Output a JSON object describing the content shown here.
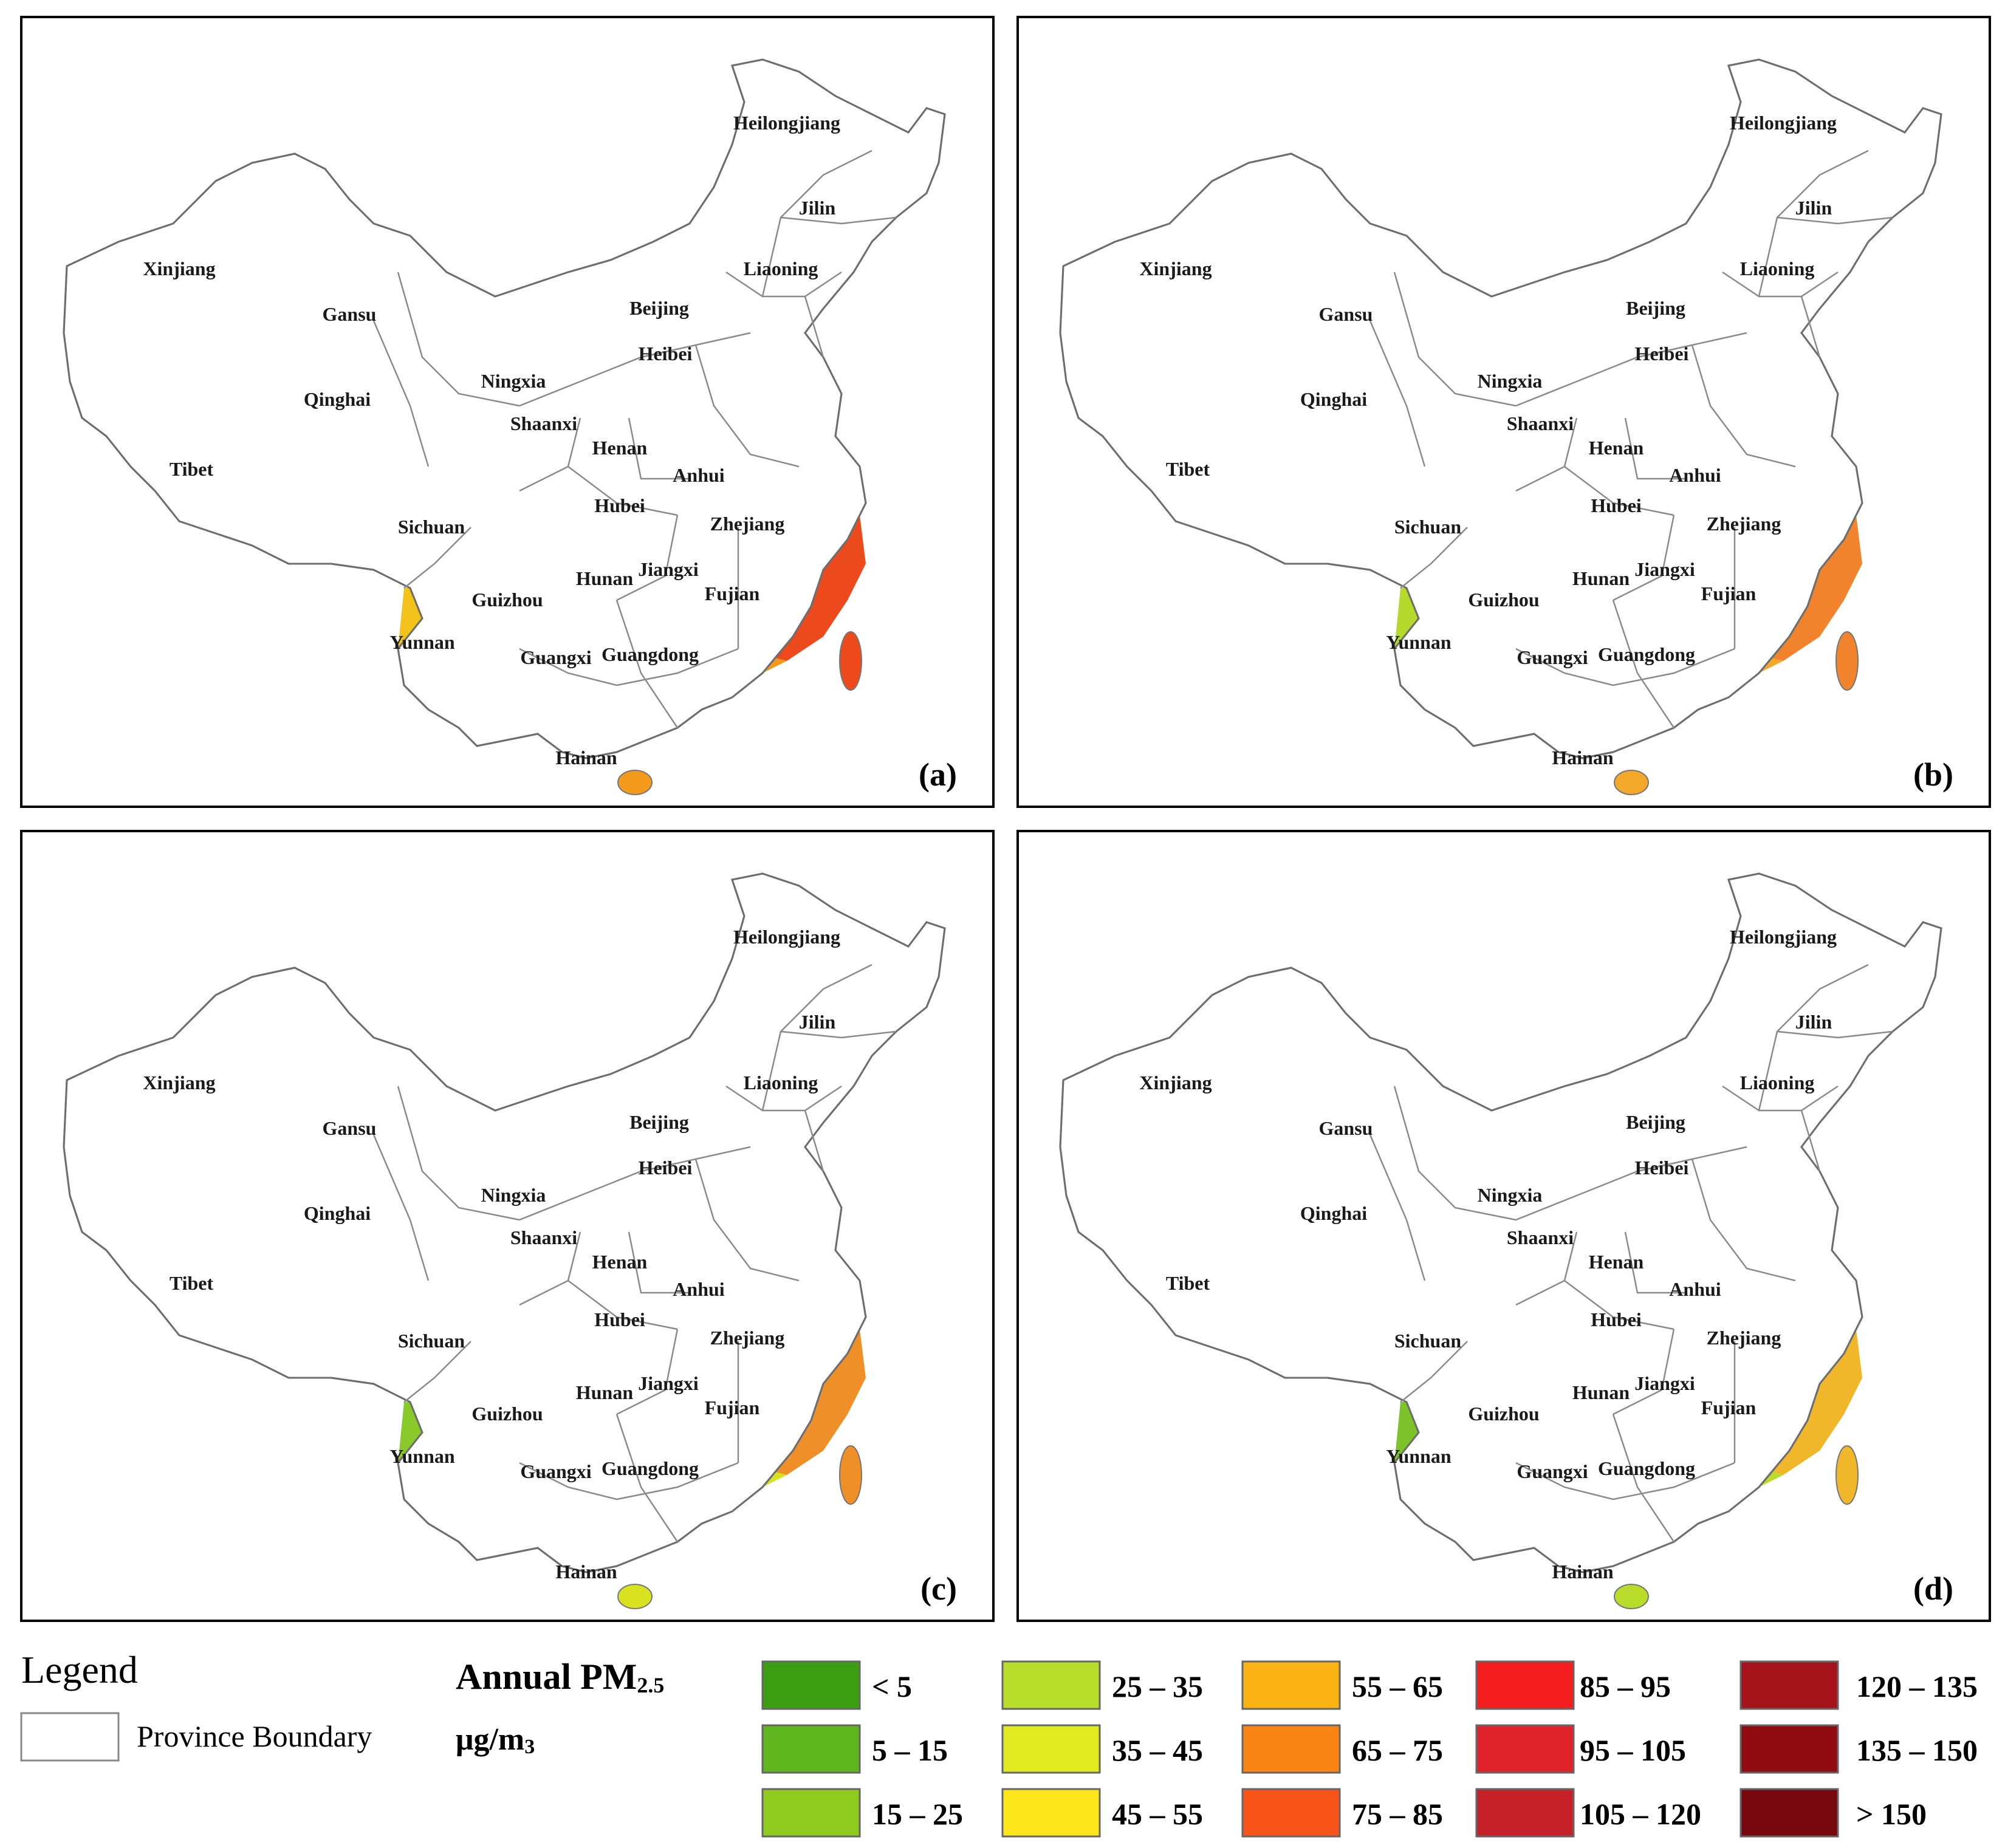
{
  "panels": [
    {
      "tag": "(a)",
      "colors": {
        "north": "#d3e21f",
        "ne": "#d9e51e",
        "west": "#d72a18",
        "west2": "#ef6a1a",
        "central": "#e9401c",
        "east": "#ec4a1c",
        "sw": "#f3c21b",
        "south": "#f39a1d",
        "tibet": "#ffffff",
        "gansu": "#f6d11b",
        "sichuan": "#c8141a"
      }
    },
    {
      "tag": "(b)",
      "colors": {
        "north": "#b9dc2a",
        "ne": "#a9d52d",
        "west": "#f07a1e",
        "west2": "#f4a41c",
        "central": "#ef6f20",
        "east": "#f0832b",
        "sw": "#b5da2b",
        "south": "#f3a82a",
        "tibet": "#ffffff",
        "gansu": "#e6e222",
        "sichuan": "#f3b329"
      }
    },
    {
      "tag": "(c)",
      "colors": {
        "north": "#a6d52a",
        "ne": "#8ecb2a",
        "west": "#e24820",
        "west2": "#f08524",
        "central": "#ee9a27",
        "east": "#ee8f27",
        "sw": "#8ac92a",
        "south": "#d9e21f",
        "tibet": "#ffffff",
        "gansu": "#cfe024",
        "sichuan": "#ef9a2b"
      }
    },
    {
      "tag": "(d)",
      "colors": {
        "north": "#8ac92a",
        "ne": "#6fbf29",
        "west": "#c8201c",
        "west2": "#e85f23",
        "central": "#f1b42a",
        "east": "#f0b72b",
        "sw": "#7dc42a",
        "south": "#b9dc2a",
        "tibet": "#ffffff",
        "gansu": "#c1dd27",
        "sichuan": "#bcdc28"
      }
    }
  ],
  "province_labels": [
    {
      "name": "Heilongjiang"
    },
    {
      "name": "Jilin"
    },
    {
      "name": "Liaoning"
    },
    {
      "name": "Xinjiang"
    },
    {
      "name": "Gansu"
    },
    {
      "name": "Beijing"
    },
    {
      "name": "Heibei"
    },
    {
      "name": "Ningxia"
    },
    {
      "name": "Qinghai"
    },
    {
      "name": "Shaanxi"
    },
    {
      "name": "Henan"
    },
    {
      "name": "Tibet"
    },
    {
      "name": "Anhui"
    },
    {
      "name": "Hubei"
    },
    {
      "name": "Sichuan"
    },
    {
      "name": "Zhejiang"
    },
    {
      "name": "Jiangxi"
    },
    {
      "name": "Hunan"
    },
    {
      "name": "Guizhou"
    },
    {
      "name": "Fujian"
    },
    {
      "name": "Yunnan"
    },
    {
      "name": "Guangxi"
    },
    {
      "name": "Guangdong"
    },
    {
      "name": "Hainan"
    }
  ],
  "legend": {
    "title": "Legend",
    "boundary_label": "Province Boundary",
    "unit_title_main": "Annual PM",
    "unit_title_sub": "2.5",
    "unit_main": "μg/m",
    "unit_sup": "3",
    "classes": [
      {
        "label": "< 5",
        "color": "#3c9f12"
      },
      {
        "label": "5 – 15",
        "color": "#5fb61e"
      },
      {
        "label": "15 – 25",
        "color": "#8fcb1f"
      },
      {
        "label": "25 – 35",
        "color": "#b8dd2b"
      },
      {
        "label": "35 – 45",
        "color": "#e0ea21"
      },
      {
        "label": "45 – 55",
        "color": "#fde619"
      },
      {
        "label": "55 – 65",
        "color": "#fcb415"
      },
      {
        "label": "65 – 75",
        "color": "#fb8514"
      },
      {
        "label": "75 – 85",
        "color": "#f8541a"
      },
      {
        "label": "85 – 95",
        "color": "#f41e1e"
      },
      {
        "label": "95 – 105",
        "color": "#e0232a"
      },
      {
        "label": "105 – 120",
        "color": "#c62028"
      },
      {
        "label": "120 – 135",
        "color": "#a5141a"
      },
      {
        "label": "135 – 150",
        "color": "#900c10"
      },
      {
        "label": "> 150",
        "color": "#76070c"
      }
    ]
  }
}
